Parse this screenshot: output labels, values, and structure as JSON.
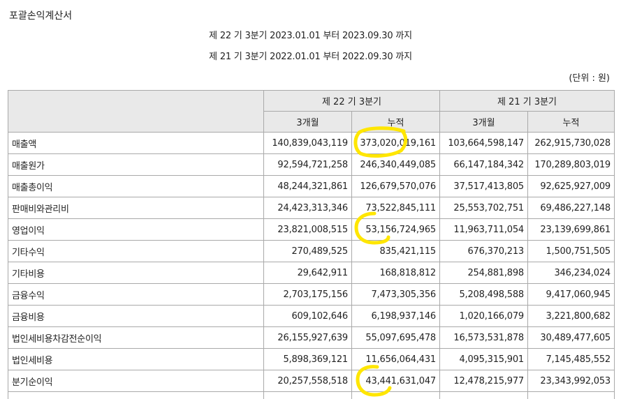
{
  "title": "포괄손익계산서",
  "periods": [
    "제 22 기 3분기 2023.01.01 부터 2023.09.30 까지",
    "제 21 기 3분기 2022.01.01 부터 2022.09.30 까지"
  ],
  "unit": "(단위 : 원)",
  "header": {
    "group1": "제 22 기 3분기",
    "group2": "제 21 기 3분기",
    "sub": [
      "3개월",
      "누적",
      "3개월",
      "누적"
    ]
  },
  "rows": [
    {
      "label": "매출액",
      "values": [
        "140,839,043,119",
        "373,020,019,161",
        "103,664,598,147",
        "262,915,730,028"
      ]
    },
    {
      "label": "매출원가",
      "values": [
        "92,594,721,258",
        "246,340,449,085",
        "66,147,184,342",
        "170,289,803,019"
      ]
    },
    {
      "label": "매출총이익",
      "values": [
        "48,244,321,861",
        "126,679,570,076",
        "37,517,413,805",
        "92,625,927,009"
      ]
    },
    {
      "label": "판매비와관리비",
      "values": [
        "24,423,313,346",
        "73,522,845,111",
        "25,553,702,751",
        "69,486,227,148"
      ]
    },
    {
      "label": "영업이익",
      "values": [
        "23,821,008,515",
        "53,156,724,965",
        "11,963,711,054",
        "23,139,699,861"
      ]
    },
    {
      "label": "기타수익",
      "values": [
        "270,489,525",
        "835,421,115",
        "676,370,213",
        "1,500,751,505"
      ]
    },
    {
      "label": "기타비용",
      "values": [
        "29,642,911",
        "168,818,812",
        "254,881,898",
        "346,234,024"
      ]
    },
    {
      "label": "금융수익",
      "values": [
        "2,703,175,156",
        "7,473,305,356",
        "5,208,498,588",
        "9,417,060,945"
      ]
    },
    {
      "label": "금융비용",
      "values": [
        "609,102,646",
        "6,198,937,146",
        "1,020,166,079",
        "3,221,800,682"
      ]
    },
    {
      "label": "법인세비용차감전순이익",
      "values": [
        "26,155,927,639",
        "55,097,695,478",
        "16,573,531,878",
        "30,489,477,605"
      ]
    },
    {
      "label": "법인세비용",
      "values": [
        "5,898,369,121",
        "11,656,064,431",
        "4,095,315,901",
        "7,145,485,552"
      ]
    },
    {
      "label": "분기순이익",
      "values": [
        "20,257,558,518",
        "43,441,631,047",
        "12,478,215,977",
        "23,343,992,053"
      ]
    }
  ],
  "highlight_color": "#ffe600"
}
